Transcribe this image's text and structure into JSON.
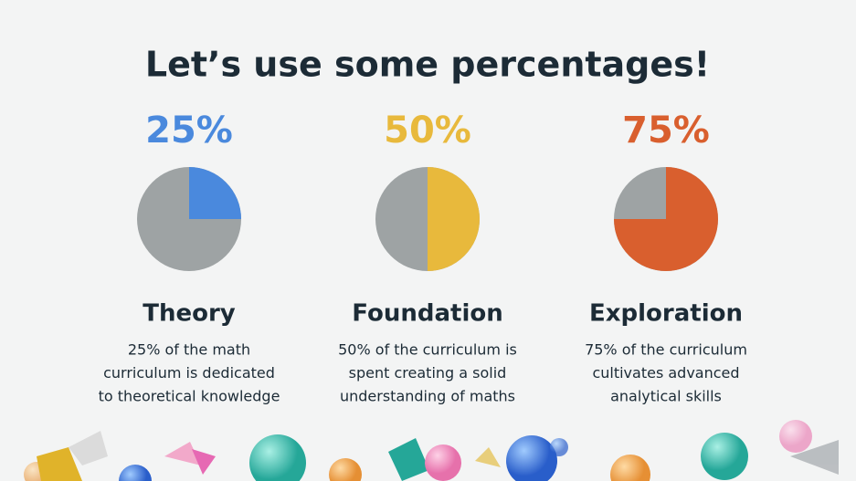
{
  "title": "Let’s use some percentages!",
  "chart_data": [
    {
      "type": "pie",
      "value": 25,
      "value_label": "25%",
      "color": "#4a89dd",
      "rest_color": "#9ea3a4",
      "title": "Theory",
      "description": [
        "25% of the math",
        "curriculum is dedicated",
        "to theoretical knowledge"
      ]
    },
    {
      "type": "pie",
      "value": 50,
      "value_label": "50%",
      "color": "#e8b93c",
      "rest_color": "#9ea3a4",
      "title": "Foundation",
      "description": [
        "50% of the curriculum is",
        "spent creating a solid",
        "understanding of maths"
      ]
    },
    {
      "type": "pie",
      "value": 75,
      "value_label": "75%",
      "color": "#d95f2e",
      "rest_color": "#9ea3a4",
      "title": "Exploration",
      "description": [
        "75% of the curriculum",
        "cultivates advanced",
        "analytical skills"
      ]
    }
  ]
}
